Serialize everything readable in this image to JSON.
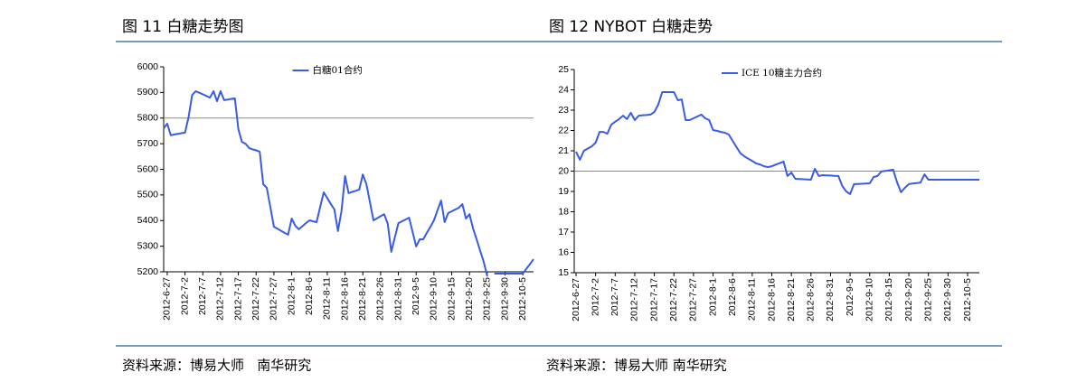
{
  "chart_data": [
    {
      "type": "line",
      "title": "图 11 白糖走势图",
      "categories": [
        null,
        "2012-6-27",
        null,
        null,
        null,
        null,
        "2012-7-2",
        null,
        null,
        null,
        null,
        "2012-7-7",
        null,
        null,
        null,
        null,
        "2012-7-12",
        null,
        null,
        null,
        null,
        "2012-7-17",
        null,
        null,
        null,
        null,
        "2012-7-22",
        null,
        null,
        null,
        null,
        "2012-7-27",
        null,
        null,
        null,
        null,
        "2012-8-1",
        null,
        null,
        null,
        null,
        "2012-8-6",
        null,
        null,
        null,
        null,
        "2012-8-11",
        null,
        null,
        null,
        null,
        "2012-8-16",
        null,
        null,
        null,
        null,
        "2012-8-21",
        null,
        null,
        null,
        null,
        "2012-8-26",
        null,
        null,
        null,
        null,
        "2012-8-31",
        null,
        null,
        null,
        null,
        "2012-9-5",
        null,
        null,
        null,
        null,
        "2012-9-10",
        null,
        null,
        null,
        null,
        "2012-9-15",
        null,
        null,
        null,
        null,
        "2012-9-20",
        null,
        null,
        null,
        null,
        "2012-9-25",
        null,
        null,
        null,
        null,
        "2012-9-30",
        null,
        null,
        null,
        null,
        "2012-10-5",
        null,
        null,
        null
      ],
      "series": [
        {
          "name": "白糖01合约",
          "color": "#3a5ce0",
          "values": [
            5760,
            5778,
            5733,
            5736,
            5738,
            5741,
            5743,
            5803,
            5890,
            5905,
            5899,
            5893,
            5886,
            5880,
            5905,
            5866,
            5905,
            5870,
            5872,
            5875,
            5877,
            5757,
            5707,
            5700,
            5683,
            5678,
            5674,
            5669,
            5542,
            5528,
            5452,
            5376,
            5368,
            5360,
            5352,
            5345,
            5408,
            5380,
            5366,
            5378,
            5390,
            5401,
            5397,
            5394,
            5452,
            5510,
            5488,
            5465,
            5443,
            5359,
            5436,
            5574,
            5507,
            5512,
            5516,
            5521,
            5580,
            5542,
            5472,
            5401,
            5409,
            5417,
            5425,
            5387,
            5278,
            5334,
            5390,
            5397,
            5404,
            5411,
            5355,
            5299,
            5327,
            5327,
            5352,
            5376,
            5401,
            5440,
            5478,
            5394,
            5429,
            5436,
            5443,
            5450,
            5464,
            5408,
            5425,
            5369,
            5326,
            5282,
            5239,
            5182,
            null,
            5193,
            5193,
            5193,
            5193,
            5193,
            5193,
            5193,
            5193,
            5193,
            5212,
            5230,
            5249
          ]
        }
      ],
      "ylim": [
        5200,
        6000
      ],
      "yticks": [
        5200,
        5300,
        5400,
        5500,
        5600,
        5700,
        5800,
        5900,
        6000
      ],
      "reference_line": 5800,
      "legend": "top",
      "source": "资料来源：博易大师   南华研究"
    },
    {
      "type": "line",
      "title": "图 12 NYBOT 白糖走势",
      "categories": [
        "2012-6-27",
        null,
        null,
        null,
        null,
        "2012-7-2",
        null,
        null,
        null,
        null,
        "2012-7-7",
        null,
        null,
        null,
        null,
        "2012-7-12",
        null,
        null,
        null,
        null,
        "2012-7-17",
        null,
        null,
        null,
        null,
        "2012-7-22",
        null,
        null,
        null,
        null,
        "2012-7-27",
        null,
        null,
        null,
        null,
        "2012-8-1",
        null,
        null,
        null,
        null,
        "2012-8-6",
        null,
        null,
        null,
        null,
        "2012-8-11",
        null,
        null,
        null,
        null,
        "2012-8-16",
        null,
        null,
        null,
        null,
        "2012-8-21",
        null,
        null,
        null,
        null,
        "2012-8-26",
        null,
        null,
        null,
        null,
        "2012-8-31",
        null,
        null,
        null,
        null,
        "2012-9-5",
        null,
        null,
        null,
        null,
        "2012-9-10",
        null,
        null,
        null,
        null,
        "2012-9-15",
        null,
        null,
        null,
        null,
        "2012-9-20",
        null,
        null,
        null,
        null,
        "2012-9-25",
        null,
        null,
        null,
        null,
        "2012-9-30",
        null,
        null,
        null,
        null,
        "2012-10-5",
        null,
        null,
        null
      ],
      "series": [
        {
          "name": "ICE 10糖主力合约",
          "color": "#3a5ce0",
          "values": [
            20.96,
            20.56,
            21.0,
            21.11,
            21.22,
            21.4,
            21.93,
            21.93,
            21.84,
            22.29,
            22.43,
            22.56,
            22.73,
            22.56,
            22.87,
            22.51,
            22.73,
            22.75,
            22.76,
            22.78,
            22.91,
            23.27,
            23.89,
            23.89,
            23.89,
            23.89,
            23.49,
            23.53,
            22.51,
            22.51,
            22.6,
            22.69,
            22.78,
            22.6,
            22.51,
            22.02,
            21.98,
            21.93,
            21.89,
            21.8,
            21.49,
            21.18,
            20.87,
            20.73,
            20.61,
            20.5,
            20.38,
            20.33,
            20.24,
            20.2,
            20.24,
            20.32,
            20.39,
            20.47,
            19.76,
            19.93,
            19.62,
            19.61,
            19.6,
            19.59,
            19.58,
            20.11,
            19.76,
            19.8,
            19.79,
            19.78,
            19.77,
            19.76,
            19.27,
            19.0,
            18.87,
            19.36,
            19.37,
            19.38,
            19.39,
            19.4,
            19.71,
            19.76,
            19.98,
            20.01,
            20.04,
            20.07,
            19.44,
            18.96,
            19.18,
            19.36,
            19.39,
            19.41,
            19.44,
            19.84,
            19.58,
            19.58,
            19.58,
            19.58,
            19.58,
            19.58,
            19.58,
            19.58,
            19.58,
            19.58,
            19.58,
            19.58,
            19.58,
            19.58
          ]
        }
      ],
      "ylim": [
        15,
        25
      ],
      "yticks": [
        15,
        16,
        17,
        18,
        19,
        20,
        21,
        22,
        23,
        24,
        25
      ],
      "reference_line": 20,
      "legend": "top",
      "source": "资料来源：博易大师 南华研究"
    }
  ]
}
